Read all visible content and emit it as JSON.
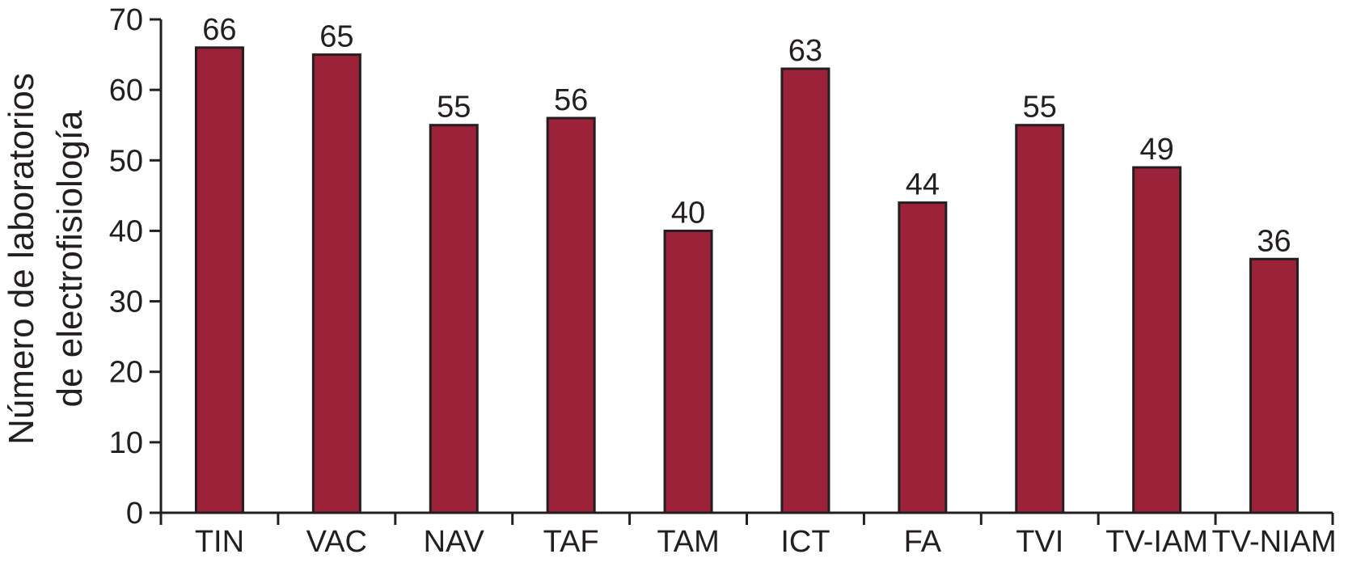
{
  "chart_data": {
    "type": "bar",
    "categories": [
      "TIN",
      "VAC",
      "NAV",
      "TAF",
      "TAM",
      "ICT",
      "FA",
      "TVI",
      "TV-IAM",
      "TV-NIAM"
    ],
    "values": [
      66,
      65,
      55,
      56,
      40,
      63,
      44,
      55,
      49,
      36
    ],
    "ylabel_line1": "Número de laboratorios",
    "ylabel_line2": "de electrofisiología",
    "xlabel": "",
    "title": "",
    "ylim": [
      0,
      70
    ],
    "yticks": [
      0,
      10,
      20,
      30,
      40,
      50,
      60,
      70
    ],
    "ytick_labels": [
      "0",
      "10",
      "20",
      "30",
      "40",
      "50",
      "60",
      "70"
    ],
    "value_labels": [
      "66",
      "65",
      "55",
      "56",
      "40",
      "63",
      "44",
      "55",
      "49",
      "36"
    ],
    "grid": false,
    "legend": "none",
    "bar_color": "#9b2238",
    "bar_edge_color": "#231f20",
    "axis_color": "#231f20"
  }
}
